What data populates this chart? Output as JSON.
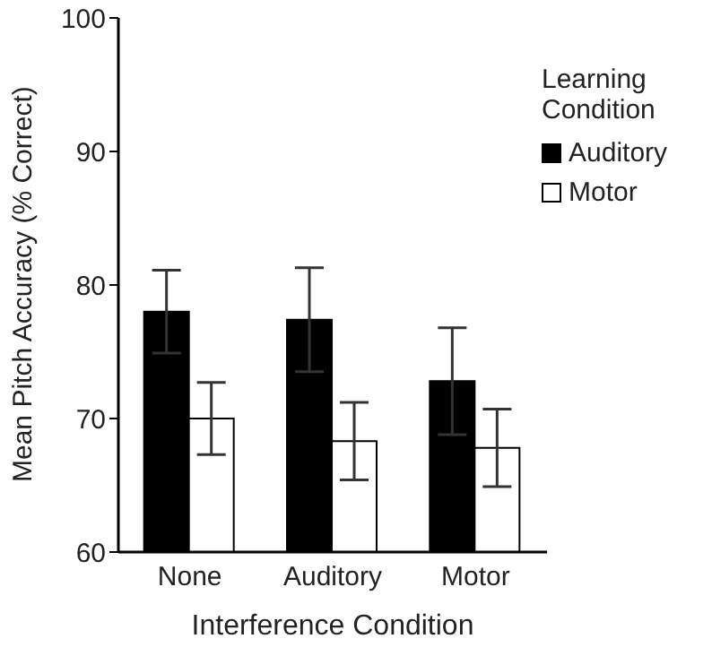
{
  "chart_data": {
    "type": "bar",
    "categories": [
      "None",
      "Auditory",
      "Motor"
    ],
    "xlabel": "Interference Condition",
    "ylabel": "Mean Pitch Accuracy (% Correct)",
    "legend_title": "Learning Condition",
    "legend": "right",
    "series": [
      {
        "name": "Auditory",
        "color": "#000000",
        "values": [
          78.0,
          77.4,
          72.8
        ],
        "errors": [
          3.1,
          3.9,
          4.0
        ]
      },
      {
        "name": "Motor",
        "color": "#ffffff",
        "values": [
          70.0,
          68.3,
          67.8
        ],
        "errors": [
          2.7,
          2.9,
          2.9
        ]
      }
    ],
    "ylim": [
      60,
      100
    ],
    "yticks": [
      60,
      70,
      80,
      90,
      100
    ],
    "grid": false
  }
}
